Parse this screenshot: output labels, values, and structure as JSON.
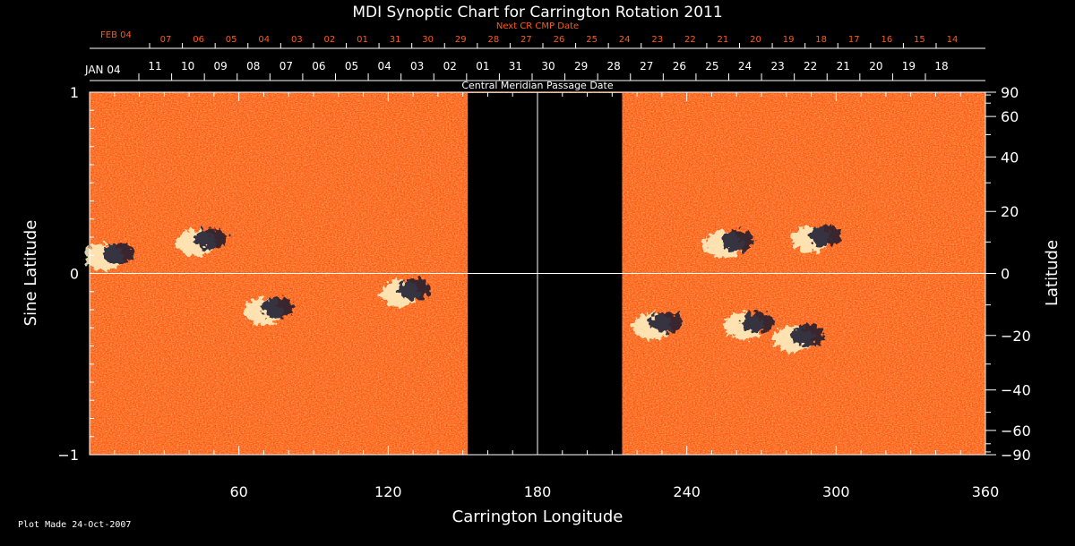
{
  "chart_data": {
    "type": "heatmap",
    "title": "MDI Synoptic Chart for Carrington Rotation 2011",
    "xlabel": "Carrington Longitude",
    "ylabel_left": "Sine Latitude",
    "ylabel_right": "Latitude",
    "top_label_next": "Next CR CMP Date",
    "top_label_cmp": "Central Meridian Passage Date",
    "footer": "Plot Made 24-Oct-2007",
    "xlim": [
      0,
      360
    ],
    "ylim": [
      -1,
      1
    ],
    "x_ticks": [
      60,
      120,
      180,
      240,
      300,
      360
    ],
    "y_ticks_left": [
      "1",
      "0",
      "−1"
    ],
    "y_ticks_right": [
      "90",
      "60",
      "40",
      "20",
      "0",
      "−20",
      "−40",
      "−60",
      "−90"
    ],
    "y_ticks_right_values": [
      90,
      60,
      40,
      20,
      0,
      -20,
      -40,
      -60,
      -90
    ],
    "next_cr_month_label": "FEB 04",
    "next_cr_dates": [
      "07",
      "06",
      "05",
      "04",
      "03",
      "02",
      "01",
      "31",
      "30",
      "29",
      "28",
      "27",
      "26",
      "25",
      "24",
      "23",
      "22",
      "21",
      "20",
      "19",
      "18",
      "17",
      "16",
      "15",
      "14"
    ],
    "cmp_month_label": "JAN 04",
    "cmp_dates": [
      "11",
      "10",
      "09",
      "08",
      "07",
      "06",
      "05",
      "04",
      "03",
      "02",
      "01",
      "31",
      "30",
      "29",
      "28",
      "27",
      "26",
      "25",
      "24",
      "23",
      "22",
      "21",
      "20",
      "19",
      "18"
    ],
    "data_gap_longitude": [
      152,
      214
    ],
    "colors": {
      "background": "#ff5a10",
      "positive_polarity": "#ffffff",
      "negative_polarity": "#000000",
      "next_cr_text": "#ff5a10",
      "gap": "#000000",
      "axes": "#ffffff"
    },
    "active_regions": [
      {
        "lon": 8,
        "sinlat": 0.1,
        "polarity": "mixed"
      },
      {
        "lon": 45,
        "sinlat": 0.18,
        "polarity": "mixed"
      },
      {
        "lon": 72,
        "sinlat": -0.2,
        "polarity": "mixed"
      },
      {
        "lon": 127,
        "sinlat": -0.1,
        "polarity": "mixed"
      },
      {
        "lon": 257,
        "sinlat": 0.17,
        "polarity": "mixed"
      },
      {
        "lon": 292,
        "sinlat": 0.2,
        "polarity": "mixed"
      },
      {
        "lon": 228,
        "sinlat": -0.28,
        "polarity": "mixed"
      },
      {
        "lon": 265,
        "sinlat": -0.28,
        "polarity": "mixed"
      },
      {
        "lon": 285,
        "sinlat": -0.35,
        "polarity": "mixed"
      }
    ]
  }
}
